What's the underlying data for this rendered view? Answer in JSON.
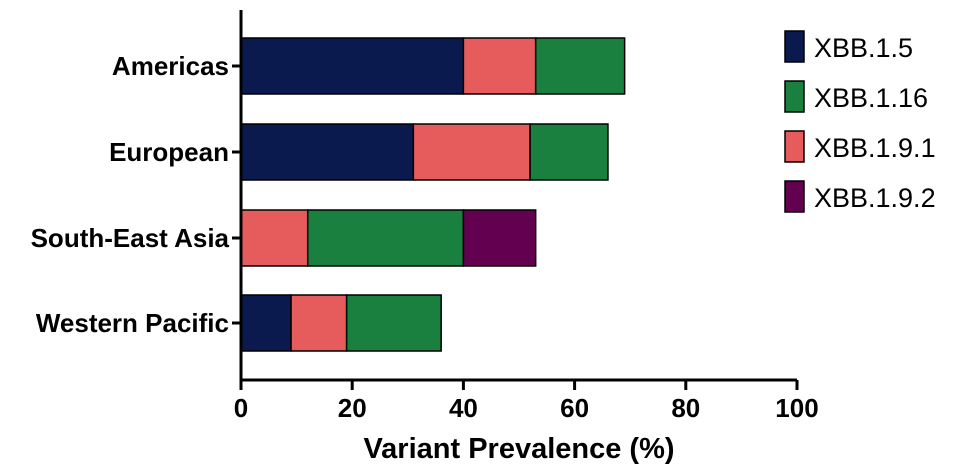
{
  "chart_data": {
    "type": "bar",
    "orientation": "horizontal",
    "stacked": true,
    "categories": [
      "Americas",
      "European",
      "South-East Asia",
      "Western Pacific"
    ],
    "series": [
      {
        "name": "XBB.1.5",
        "color": "#0b1a4e",
        "values": [
          40,
          31,
          0,
          9
        ]
      },
      {
        "name": "XBB.1.9.1",
        "color": "#e65c5c",
        "values": [
          13,
          21,
          12,
          10
        ]
      },
      {
        "name": "XBB.1.16",
        "color": "#1a8040",
        "values": [
          16,
          14,
          28,
          17
        ]
      },
      {
        "name": "XBB.1.9.2",
        "color": "#63004f",
        "values": [
          0,
          0,
          13,
          0
        ]
      }
    ],
    "legend_order": [
      "XBB.1.5",
      "XBB.1.16",
      "XBB.1.9.1",
      "XBB.1.9.2"
    ],
    "xlabel": "Variant Prevalence (%)",
    "ylabel": "",
    "xlim": [
      0,
      100
    ],
    "xticks": [
      "0",
      "20",
      "40",
      "60",
      "80",
      "100"
    ],
    "grid": false,
    "legend_position": "right"
  }
}
